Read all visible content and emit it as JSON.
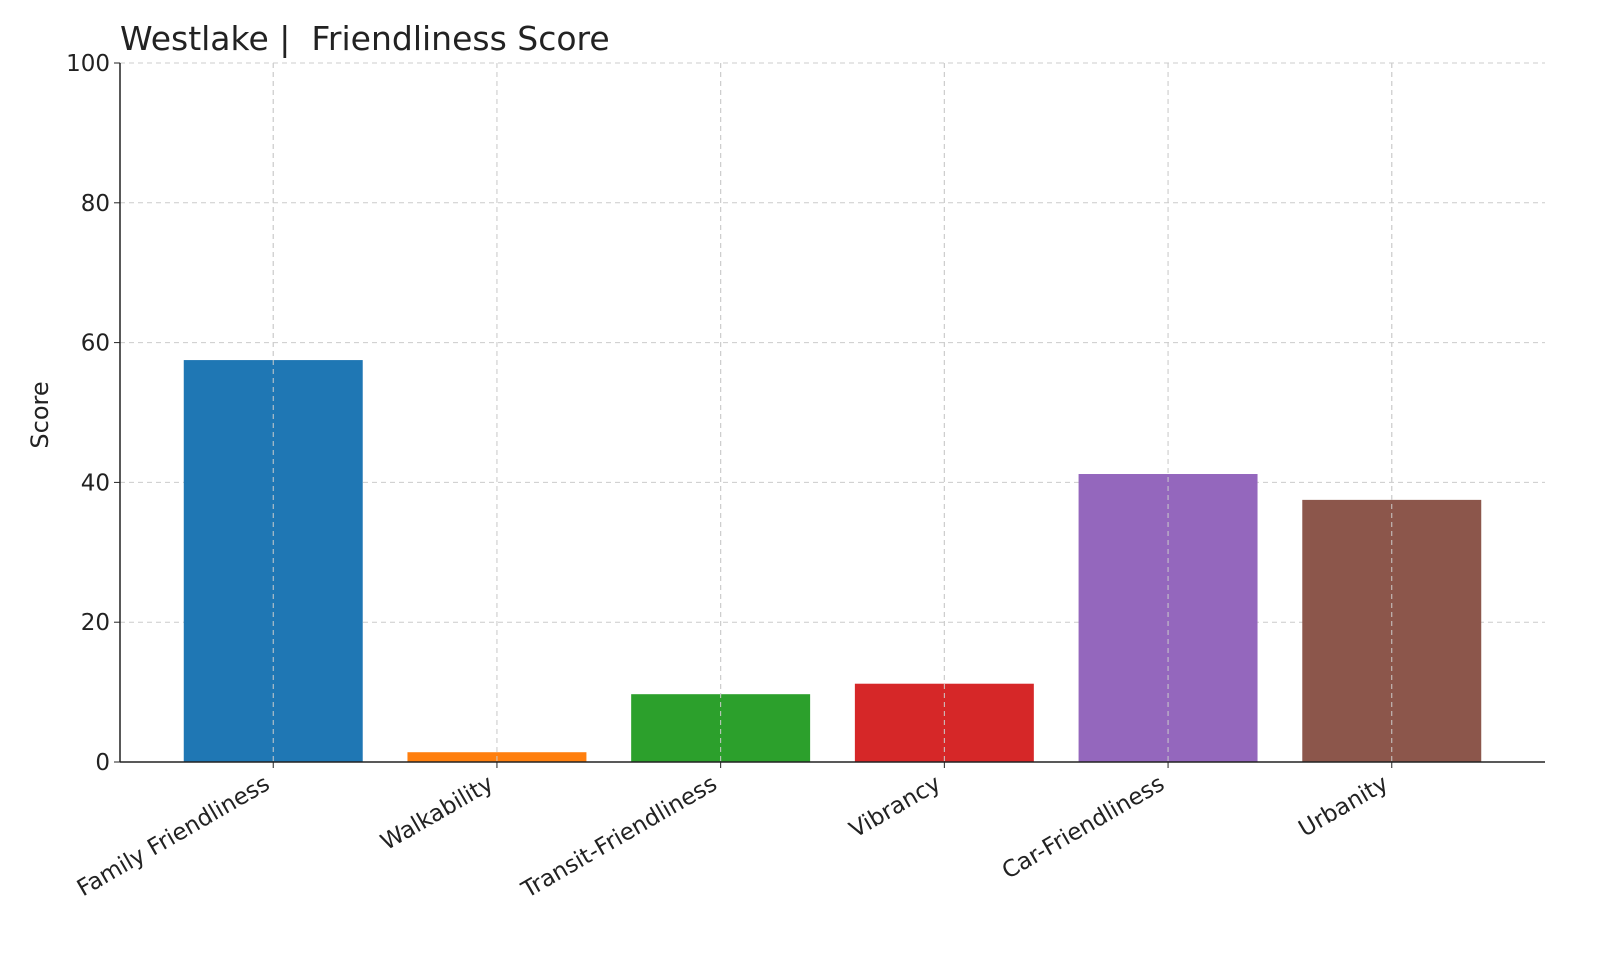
{
  "chart_data": {
    "type": "bar",
    "title": "Westlake |  Friendliness Score",
    "y_label": "Score",
    "categories": [
      "Family Friendliness",
      "Walkability",
      "Transit-Friendliness",
      "Vibrancy",
      "Car-Friendliness",
      "Urbanity"
    ],
    "values": [
      57.5,
      1.4,
      9.7,
      11.2,
      41.2,
      37.5
    ],
    "colors": [
      "#1f77b4",
      "#ff7f0e",
      "#2ca02c",
      "#d62728",
      "#9467bd",
      "#8c564b"
    ],
    "ylim": [
      0,
      100
    ],
    "yticks": [
      0,
      20,
      40,
      60,
      80,
      100
    ],
    "grid": true
  }
}
